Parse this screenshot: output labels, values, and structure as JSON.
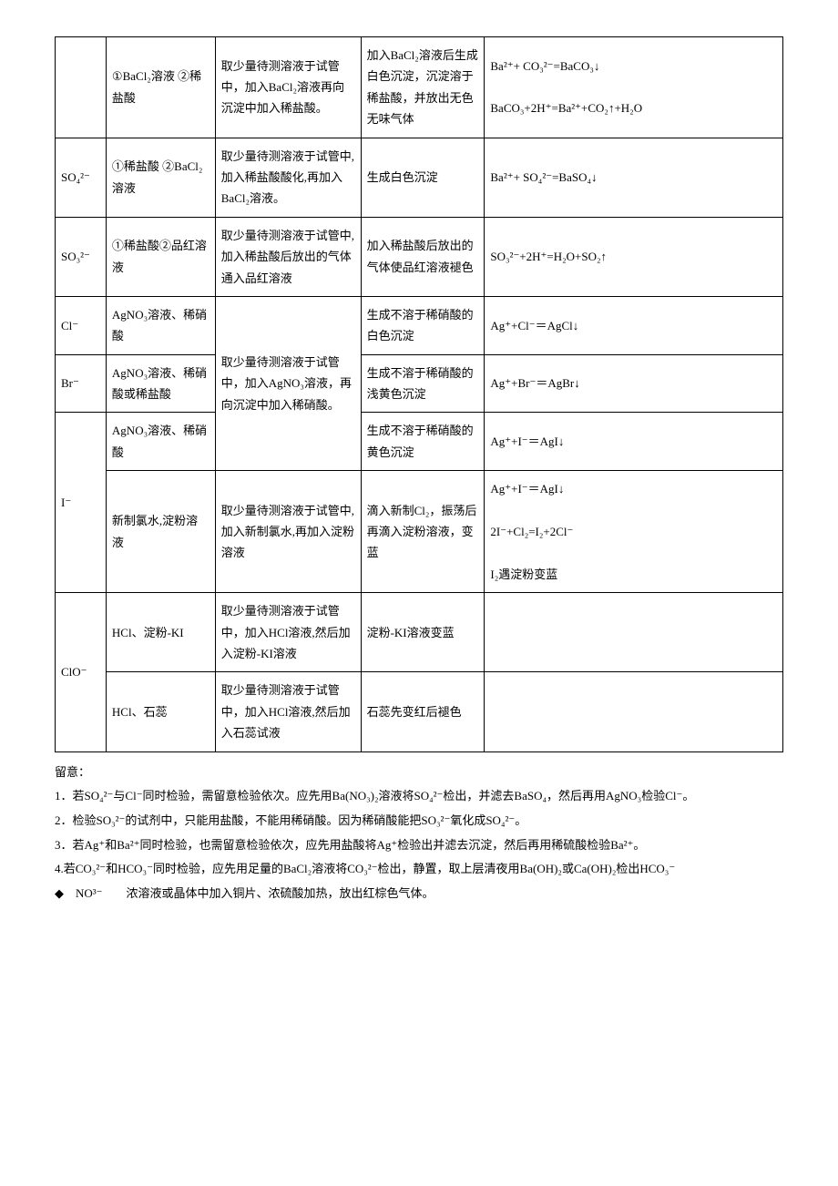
{
  "table": {
    "columns": [
      "col1",
      "col2",
      "col3",
      "col4",
      "col5"
    ],
    "rows": [
      {
        "c1": "",
        "c2": "①BaCl₂溶液  ②稀盐酸",
        "c3": "取少量待测溶液于试管中，加入BaCl₂溶液再向沉淀中加入稀盐酸。",
        "c4": "加入BaCl₂溶液后生成白色沉淀，沉淀溶于稀盐酸，并放出无色无味气体",
        "c5": "Ba²⁺+ CO₃²⁻=BaCO₃↓\n\nBaCO₃+2H⁺=Ba²⁺+CO₂↑+H₂O"
      },
      {
        "c1": "SO₄²⁻",
        "c2": "①稀盐酸  ②BaCl₂溶液",
        "c3": "取少量待测溶液于试管中,加入稀盐酸酸化,再加入BaCl₂溶液。",
        "c4": "生成白色沉淀",
        "c5": "Ba²⁺+ SO₄²⁻=BaSO₄↓"
      },
      {
        "c1": "SO₃²⁻",
        "c2": "①稀盐酸②品红溶液",
        "c3": "取少量待测溶液于试管中,加入稀盐酸后放出的气体通入品红溶液",
        "c4": "加入稀盐酸后放出的气体使品红溶液褪色",
        "c5": "SO₃²⁻+2H⁺=H₂O+SO₂↑"
      },
      {
        "c1": "Cl⁻",
        "c2": "AgNO₃溶液、稀硝酸",
        "c3_merged": "取少量待测溶液于试管中，加入AgNO₃溶液，再向沉淀中加入稀硝酸。",
        "c4": "生成不溶于稀硝酸的白色沉淀",
        "c5": "Ag⁺+Cl⁻＝AgCl↓"
      },
      {
        "c1": "Br⁻",
        "c2": "AgNO₃溶液、稀硝酸或稀盐酸",
        "c4": "生成不溶于稀硝酸的浅黄色沉淀",
        "c5": "Ag⁺+Br⁻＝AgBr↓"
      },
      {
        "c1_merged": "I⁻",
        "c2": "AgNO₃溶液、稀硝酸",
        "c4": "生成不溶于稀硝酸的黄色沉淀",
        "c5": "Ag⁺+I⁻＝AgI↓"
      },
      {
        "c2": "新制氯水,淀粉溶液",
        "c3": "取少量待测溶液于试管中,加入新制氯水,再加入淀粉溶液",
        "c4": "滴入新制Cl₂，振荡后再滴入淀粉溶液，变蓝",
        "c5": "Ag⁺+I⁻＝AgI↓\n\n2I⁻+Cl₂=I₂+2Cl⁻\n\nI₂遇淀粉变蓝"
      },
      {
        "c1_merged": "ClO⁻",
        "c2": "HCl、淀粉-KI",
        "c3": "取少量待测溶液于试管中，加入HCl溶液,然后加入淀粉-KI溶液",
        "c4": "淀粉-KI溶液变蓝",
        "c5": ""
      },
      {
        "c2": "HCl、石蕊",
        "c3": "取少量待测溶液于试管中，加入HCl溶液,然后加入石蕊试液",
        "c4": "石蕊先变红后褪色",
        "c5": ""
      }
    ]
  },
  "notes": {
    "header": "留意：",
    "items": [
      "1．若SO₄²⁻与Cl⁻同时检验，需留意检验依次。应先用Ba(NO₃)₂溶液将SO₄²⁻检出，并滤去BaSO₄，然后再用AgNO₃检验Cl⁻。",
      "2．检验SO₃²⁻的试剂中，只能用盐酸，不能用稀硝酸。因为稀硝酸能把SO₃²⁻氧化成SO₄²⁻。",
      "3．若Ag⁺和Ba²⁺同时检验，也需留意检验依次，应先用盐酸将Ag⁺检验出并滤去沉淀，然后再用稀硫酸检验Ba²⁺。",
      "4.若CO₃²⁻和HCO₃⁻同时检验，应先用足量的BaCl₂溶液将CO₃²⁻检出，静置，取上层清夜用Ba(OH)₂或Ca(OH)₂检出HCO₃⁻"
    ],
    "bullet": "◆　NO³⁻　　浓溶液或晶体中加入铜片、浓硫酸加热，放出红棕色气体。"
  }
}
